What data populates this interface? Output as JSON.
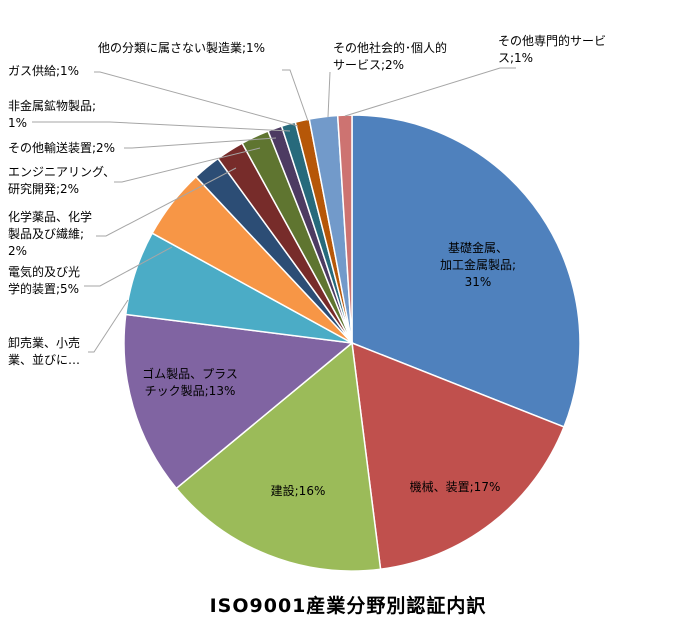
{
  "chart_data": {
    "type": "pie",
    "title": "ISO9001産業分野別認証内訳",
    "slices": [
      {
        "name": "基礎金属、加工金属製品",
        "value": 31,
        "label": [
          "基礎金属、",
          "加工金属製品;",
          "31%"
        ],
        "color": "#4f81bd"
      },
      {
        "name": "機械、装置",
        "value": 17,
        "label": [
          "機械、装置;17%"
        ],
        "color": "#c0504d"
      },
      {
        "name": "建設",
        "value": 16,
        "label": [
          "建設;16%"
        ],
        "color": "#9bbb59"
      },
      {
        "name": "ゴム製品、プラスチック製品",
        "value": 13,
        "label": [
          "ゴム製品、プラス",
          "チック製品;13%"
        ],
        "color": "#8064a2"
      },
      {
        "name": "卸売業、小売業、並びに…",
        "value": 6,
        "label": [
          "卸売業、小売",
          "業、並びに…"
        ],
        "color": "#4bacc6"
      },
      {
        "name": "電気的及び光学的装置",
        "value": 5,
        "label": [
          "電気的及び光",
          "学的装置;5%"
        ],
        "color": "#f79646"
      },
      {
        "name": "化学薬品、化学製品及び繊維",
        "value": 2,
        "label": [
          "化学薬品、化学",
          "製品及び繊維;",
          "2%"
        ],
        "color": "#2c4d75"
      },
      {
        "name": "エンジニアリング、研究開発",
        "value": 2,
        "label": [
          "エンジニアリング、",
          "研究開発;2%"
        ],
        "color": "#772c2a"
      },
      {
        "name": "その他輸送装置",
        "value": 2,
        "label": [
          "その他輸送装置;2%"
        ],
        "color": "#5f7530"
      },
      {
        "name": "非金属鉱物製品",
        "value": 1,
        "label": [
          "非金属鉱物製品;",
          "1%"
        ],
        "color": "#4d3b62"
      },
      {
        "name": "ガス供給",
        "value": 1,
        "label": [
          "ガス供給;1%"
        ],
        "color": "#276a7c"
      },
      {
        "name": "他の分類に属さない製造業",
        "value": 1,
        "label": [
          "他の分類に属さない製造業;1%"
        ],
        "color": "#b65708"
      },
      {
        "name": "その他社会的・個人的サービス",
        "value": 2,
        "label": [
          "その他社会的･個人的",
          "サービス;2%"
        ],
        "color": "#729aca"
      },
      {
        "name": "その他専門的サービス",
        "value": 1,
        "label": [
          "その他専門的サービ",
          "ス;1%"
        ],
        "color": "#cd7371"
      }
    ]
  }
}
